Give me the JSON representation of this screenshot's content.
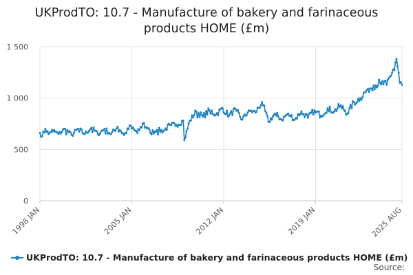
{
  "chart_data": {
    "type": "line",
    "title_line1": "UKProdTO: 10.7 - Manufacture of bakery and farinaceous",
    "title_line2": "products HOME (£m)",
    "title": "UKProdTO: 10.7 - Manufacture of bakery and farinaceous products HOME (£m)",
    "xlabel": "",
    "ylabel": "",
    "x_ticks": [
      "1998 JAN",
      "2005 JAN",
      "2012 JAN",
      "2019 JAN",
      "2025 AUG"
    ],
    "y_ticks": [
      "0",
      "500",
      "1 000",
      "1 500"
    ],
    "ylim": [
      0,
      1500
    ],
    "xlim": [
      "1998 JAN",
      "2025 AUG"
    ],
    "grid": true,
    "legend_position": "bottom",
    "source_label": "Source:",
    "colors": {
      "series": "#1f83c1",
      "grid": "#e3e3e3",
      "axis": "#c8c8c8"
    },
    "series": [
      {
        "name": "UKProdTO: 10.7 - Manufacture of bakery and farinaceous products HOME (£m)",
        "start": "1998 JAN",
        "frequency": "monthly",
        "anchors": [
          [
            "1998-01",
            660
          ],
          [
            "1998-03",
            630
          ],
          [
            "1998-06",
            700
          ],
          [
            "1998-09",
            650
          ],
          [
            "1998-12",
            690
          ],
          [
            "1999-06",
            650
          ],
          [
            "1999-12",
            700
          ],
          [
            "2000-06",
            640
          ],
          [
            "2000-12",
            700
          ],
          [
            "2001-06",
            650
          ],
          [
            "2001-12",
            710
          ],
          [
            "2002-06",
            650
          ],
          [
            "2002-12",
            700
          ],
          [
            "2003-06",
            650
          ],
          [
            "2003-12",
            720
          ],
          [
            "2004-06",
            640
          ],
          [
            "2004-12",
            730
          ],
          [
            "2005-06",
            660
          ],
          [
            "2005-12",
            760
          ],
          [
            "2006-06",
            660
          ],
          [
            "2006-12",
            690
          ],
          [
            "2007-06",
            680
          ],
          [
            "2007-12",
            740
          ],
          [
            "2008-06",
            740
          ],
          [
            "2008-12",
            780
          ],
          [
            "2009-01",
            590
          ],
          [
            "2009-06",
            780
          ],
          [
            "2009-12",
            870
          ],
          [
            "2010-06",
            820
          ],
          [
            "2010-12",
            880
          ],
          [
            "2011-06",
            840
          ],
          [
            "2011-12",
            900
          ],
          [
            "2012-06",
            830
          ],
          [
            "2012-12",
            890
          ],
          [
            "2013-06",
            790
          ],
          [
            "2013-12",
            880
          ],
          [
            "2014-06",
            860
          ],
          [
            "2014-12",
            960
          ],
          [
            "2015-06",
            770
          ],
          [
            "2015-12",
            850
          ],
          [
            "2016-06",
            790
          ],
          [
            "2016-12",
            850
          ],
          [
            "2017-06",
            790
          ],
          [
            "2017-12",
            870
          ],
          [
            "2018-06",
            810
          ],
          [
            "2018-12",
            880
          ],
          [
            "2019-06",
            830
          ],
          [
            "2019-12",
            900
          ],
          [
            "2020-06",
            870
          ],
          [
            "2020-12",
            930
          ],
          [
            "2021-06",
            850
          ],
          [
            "2021-12",
            960
          ],
          [
            "2022-06",
            1000
          ],
          [
            "2022-12",
            1080
          ],
          [
            "2023-06",
            1120
          ],
          [
            "2023-12",
            1150
          ],
          [
            "2024-06",
            1130
          ],
          [
            "2024-12",
            1280
          ],
          [
            "2025-03",
            1380
          ],
          [
            "2025-06",
            1150
          ],
          [
            "2025-08",
            1130
          ]
        ]
      }
    ]
  }
}
